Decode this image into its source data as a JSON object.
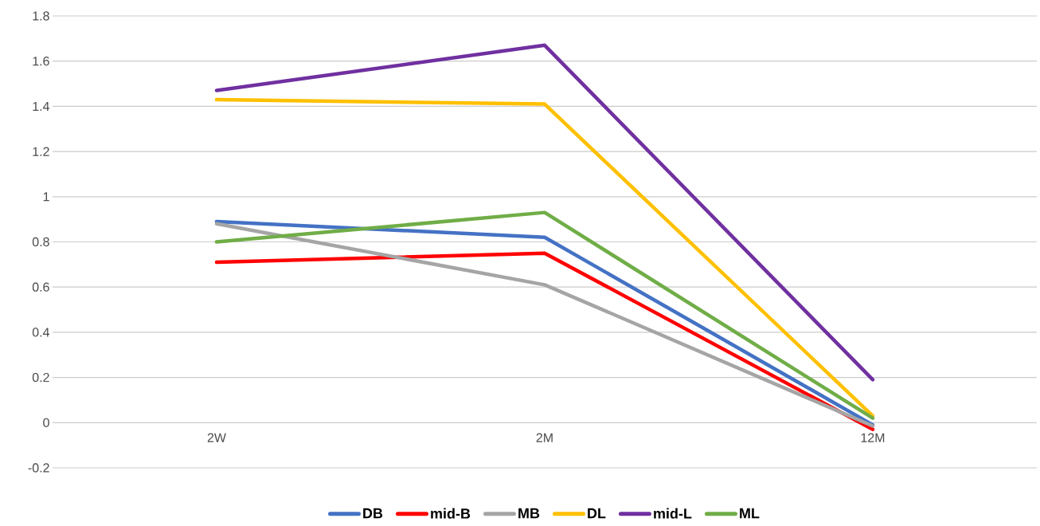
{
  "chart_data": {
    "type": "line",
    "categories": [
      "2W",
      "2M",
      "12M"
    ],
    "series": [
      {
        "name": "DB",
        "color": "#4472c4",
        "values": [
          0.89,
          0.82,
          -0.01
        ]
      },
      {
        "name": "mid-B",
        "color": "#ff0000",
        "values": [
          0.71,
          0.75,
          -0.03
        ]
      },
      {
        "name": "MB",
        "color": "#a5a5a5",
        "values": [
          0.88,
          0.61,
          -0.015
        ]
      },
      {
        "name": "DL",
        "color": "#ffc000",
        "values": [
          1.43,
          1.41,
          0.03
        ]
      },
      {
        "name": "mid-L",
        "color": "#7030a0",
        "values": [
          1.47,
          1.67,
          0.19
        ]
      },
      {
        "name": "ML",
        "color": "#70ad47",
        "values": [
          0.8,
          0.93,
          0.02
        ]
      }
    ],
    "ylim": [
      -0.2,
      1.8
    ],
    "yticks": [
      -0.2,
      0,
      0.2,
      0.4,
      0.6,
      0.8,
      1,
      1.2,
      1.4,
      1.6,
      1.8
    ],
    "grid": "y",
    "legend": "bottom",
    "marker": "none",
    "line_style": "solid"
  }
}
